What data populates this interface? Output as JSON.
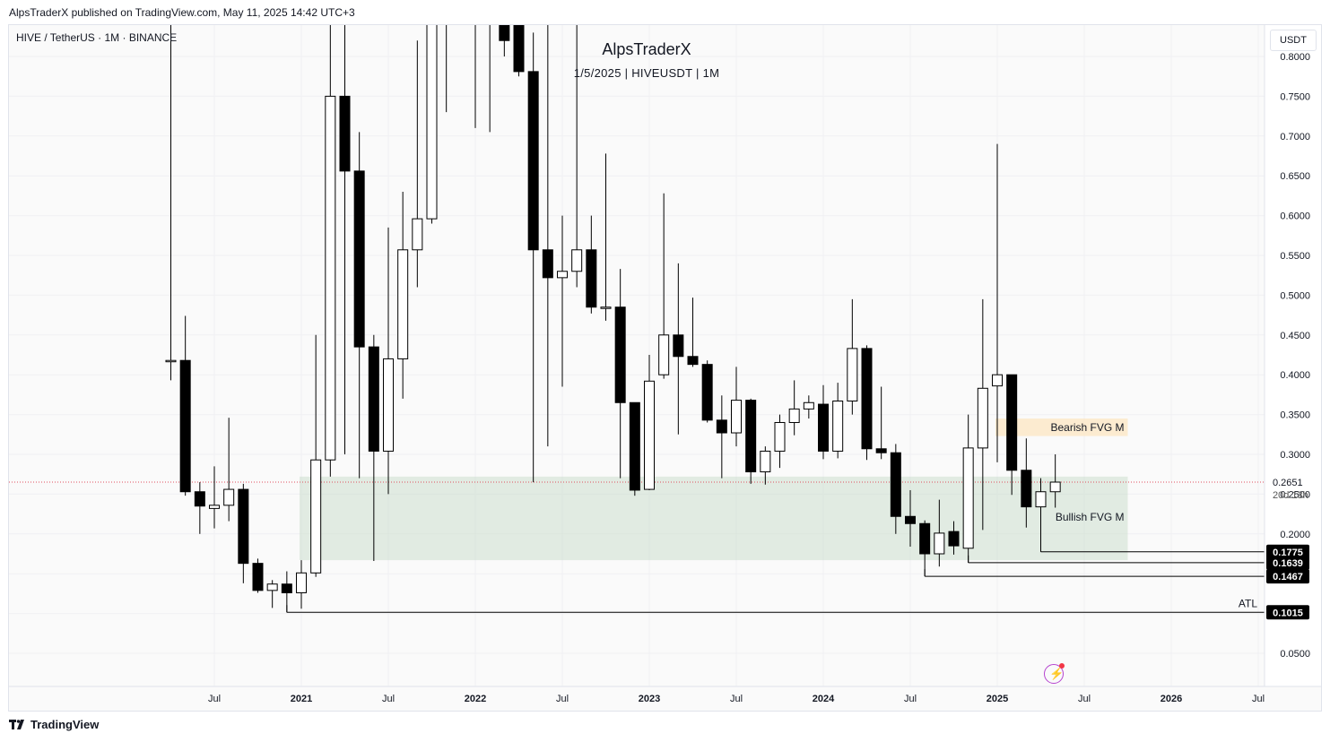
{
  "header": {
    "caption": "AlpsTraderX published on TradingView.com, May 11, 2025 14:42 UTC+3"
  },
  "chart_header": {
    "symbol": "HIVE / TetherUS · 1M · BINANCE",
    "title": "AlpsTraderX",
    "subtitle": "1/5/2025 | HIVEUSDT | 1M",
    "currency": "USDT"
  },
  "footer": {
    "brand": "TradingView"
  },
  "colors": {
    "up_body": "#ffffff",
    "down_body": "#000000",
    "wick": "#000000",
    "bullish_zone": "#c8dbc9",
    "bearish_zone": "#fbe7c8",
    "price_line": "#e04f5f",
    "label_bg": "#000000"
  },
  "icons": [
    "tradingview-logo-icon",
    "lightning-icon"
  ],
  "chart_data": {
    "type": "candlestick",
    "timeframe": "1M",
    "x_ticks": [
      "Jul",
      "2021",
      "Jul",
      "2022",
      "Jul",
      "2023",
      "Jul",
      "2024",
      "Jul",
      "2025",
      "Jul",
      "2026",
      "Jul"
    ],
    "y_ticks": [
      "0.8000",
      "0.7500",
      "0.7000",
      "0.6500",
      "0.6000",
      "0.5500",
      "0.5000",
      "0.4500",
      "0.4000",
      "0.3500",
      "0.3000",
      "0.2500",
      "0.2000",
      "0.0500"
    ],
    "y_range": [
      0.0,
      0.82
    ],
    "candles": [
      {
        "date": "2020-04",
        "open": 0.418,
        "high": 0.99,
        "low": 0.393,
        "close": 0.418
      },
      {
        "date": "2020-05",
        "open": 0.418,
        "high": 0.474,
        "low": 0.248,
        "close": 0.253
      },
      {
        "date": "2020-06",
        "open": 0.253,
        "high": 0.265,
        "low": 0.2,
        "close": 0.235
      },
      {
        "date": "2020-07",
        "open": 0.232,
        "high": 0.285,
        "low": 0.207,
        "close": 0.236
      },
      {
        "date": "2020-08",
        "open": 0.236,
        "high": 0.346,
        "low": 0.216,
        "close": 0.256
      },
      {
        "date": "2020-09",
        "open": 0.256,
        "high": 0.263,
        "low": 0.138,
        "close": 0.163
      },
      {
        "date": "2020-10",
        "open": 0.163,
        "high": 0.169,
        "low": 0.126,
        "close": 0.129
      },
      {
        "date": "2020-11",
        "open": 0.129,
        "high": 0.142,
        "low": 0.107,
        "close": 0.137
      },
      {
        "date": "2020-12",
        "open": 0.137,
        "high": 0.153,
        "low": 0.1015,
        "close": 0.126
      },
      {
        "date": "2021-01",
        "open": 0.126,
        "high": 0.167,
        "low": 0.106,
        "close": 0.151
      },
      {
        "date": "2021-02",
        "open": 0.151,
        "high": 0.45,
        "low": 0.146,
        "close": 0.293
      },
      {
        "date": "2021-03",
        "open": 0.293,
        "high": 0.99,
        "low": 0.272,
        "close": 0.75
      },
      {
        "date": "2021-04",
        "open": 0.75,
        "high": 0.99,
        "low": 0.3,
        "close": 0.656
      },
      {
        "date": "2021-05",
        "open": 0.656,
        "high": 0.705,
        "low": 0.27,
        "close": 0.435
      },
      {
        "date": "2021-06",
        "open": 0.435,
        "high": 0.45,
        "low": 0.166,
        "close": 0.304
      },
      {
        "date": "2021-07",
        "open": 0.304,
        "high": 0.585,
        "low": 0.25,
        "close": 0.42
      },
      {
        "date": "2021-08",
        "open": 0.42,
        "high": 0.63,
        "low": 0.37,
        "close": 0.557
      },
      {
        "date": "2021-09",
        "open": 0.557,
        "high": 0.82,
        "low": 0.51,
        "close": 0.596
      },
      {
        "date": "2021-10",
        "open": 0.596,
        "high": 0.99,
        "low": 0.59,
        "close": 0.94
      },
      {
        "date": "2021-11",
        "open": 0.94,
        "high": 0.99,
        "low": 0.73,
        "close": 0.99
      },
      {
        "date": "2022-01",
        "open": 0.99,
        "high": 0.99,
        "low": 0.71,
        "close": 0.9
      },
      {
        "date": "2022-02",
        "open": 0.9,
        "high": 0.99,
        "low": 0.705,
        "close": 0.86
      },
      {
        "date": "2022-03",
        "open": 0.86,
        "high": 0.99,
        "low": 0.8,
        "close": 0.82
      },
      {
        "date": "2022-04",
        "open": 0.99,
        "high": 0.99,
        "low": 0.775,
        "close": 0.781
      },
      {
        "date": "2022-05",
        "open": 0.781,
        "high": 0.83,
        "low": 0.265,
        "close": 0.557
      },
      {
        "date": "2022-06",
        "open": 0.557,
        "high": 0.99,
        "low": 0.31,
        "close": 0.522
      },
      {
        "date": "2022-07",
        "open": 0.522,
        "high": 0.6,
        "low": 0.385,
        "close": 0.53
      },
      {
        "date": "2022-08",
        "open": 0.53,
        "high": 0.99,
        "low": 0.51,
        "close": 0.557
      },
      {
        "date": "2022-09",
        "open": 0.557,
        "high": 0.6,
        "low": 0.477,
        "close": 0.485
      },
      {
        "date": "2022-10",
        "open": 0.485,
        "high": 0.678,
        "low": 0.468,
        "close": 0.485
      },
      {
        "date": "2022-11",
        "open": 0.485,
        "high": 0.533,
        "low": 0.27,
        "close": 0.365
      },
      {
        "date": "2022-12",
        "open": 0.365,
        "high": 0.365,
        "low": 0.248,
        "close": 0.255
      },
      {
        "date": "2023-01",
        "open": 0.256,
        "high": 0.425,
        "low": 0.255,
        "close": 0.392
      },
      {
        "date": "2023-02",
        "open": 0.4,
        "high": 0.628,
        "low": 0.395,
        "close": 0.45
      },
      {
        "date": "2023-03",
        "open": 0.45,
        "high": 0.54,
        "low": 0.325,
        "close": 0.423
      },
      {
        "date": "2023-04",
        "open": 0.423,
        "high": 0.497,
        "low": 0.41,
        "close": 0.413
      },
      {
        "date": "2023-05",
        "open": 0.413,
        "high": 0.418,
        "low": 0.34,
        "close": 0.343
      },
      {
        "date": "2023-06",
        "open": 0.343,
        "high": 0.374,
        "low": 0.27,
        "close": 0.327
      },
      {
        "date": "2023-07",
        "open": 0.327,
        "high": 0.41,
        "low": 0.31,
        "close": 0.368
      },
      {
        "date": "2023-08",
        "open": 0.368,
        "high": 0.37,
        "low": 0.263,
        "close": 0.278
      },
      {
        "date": "2023-09",
        "open": 0.278,
        "high": 0.31,
        "low": 0.262,
        "close": 0.304
      },
      {
        "date": "2023-10",
        "open": 0.304,
        "high": 0.35,
        "low": 0.283,
        "close": 0.34
      },
      {
        "date": "2023-11",
        "open": 0.34,
        "high": 0.393,
        "low": 0.324,
        "close": 0.357
      },
      {
        "date": "2023-12",
        "open": 0.357,
        "high": 0.374,
        "low": 0.345,
        "close": 0.365
      },
      {
        "date": "2024-01",
        "open": 0.363,
        "high": 0.387,
        "low": 0.294,
        "close": 0.304
      },
      {
        "date": "2024-02",
        "open": 0.304,
        "high": 0.39,
        "low": 0.295,
        "close": 0.367
      },
      {
        "date": "2024-03",
        "open": 0.367,
        "high": 0.495,
        "low": 0.35,
        "close": 0.433
      },
      {
        "date": "2024-04",
        "open": 0.433,
        "high": 0.437,
        "low": 0.293,
        "close": 0.307
      },
      {
        "date": "2024-05",
        "open": 0.307,
        "high": 0.385,
        "low": 0.294,
        "close": 0.302
      },
      {
        "date": "2024-06",
        "open": 0.302,
        "high": 0.313,
        "low": 0.2,
        "close": 0.222
      },
      {
        "date": "2024-07",
        "open": 0.222,
        "high": 0.255,
        "low": 0.184,
        "close": 0.213
      },
      {
        "date": "2024-08",
        "open": 0.213,
        "high": 0.217,
        "low": 0.1467,
        "close": 0.175
      },
      {
        "date": "2024-09",
        "open": 0.175,
        "high": 0.243,
        "low": 0.159,
        "close": 0.201
      },
      {
        "date": "2024-10",
        "open": 0.203,
        "high": 0.216,
        "low": 0.174,
        "close": 0.185
      },
      {
        "date": "2024-11",
        "open": 0.182,
        "high": 0.35,
        "low": 0.1639,
        "close": 0.308
      },
      {
        "date": "2024-12",
        "open": 0.308,
        "high": 0.495,
        "low": 0.205,
        "close": 0.383
      },
      {
        "date": "2025-01",
        "open": 0.386,
        "high": 0.69,
        "low": 0.29,
        "close": 0.4
      },
      {
        "date": "2025-02",
        "open": 0.4,
        "high": 0.4,
        "low": 0.249,
        "close": 0.28
      },
      {
        "date": "2025-03",
        "open": 0.28,
        "high": 0.32,
        "low": 0.208,
        "close": 0.234
      },
      {
        "date": "2025-04",
        "open": 0.234,
        "high": 0.27,
        "low": 0.1775,
        "close": 0.253
      },
      {
        "date": "2025-05",
        "open": 0.253,
        "high": 0.3,
        "low": 0.233,
        "close": 0.2651
      }
    ],
    "zones": [
      {
        "label": "Bearish FVG M",
        "low": 0.323,
        "high": 0.345,
        "start": "2025-01",
        "end": "2025-10"
      },
      {
        "label": "Bullish FVG M",
        "low": 0.167,
        "high": 0.272,
        "start": "2021-01",
        "end": "2025-10"
      }
    ],
    "levels": [
      {
        "label": "0.1775",
        "value": 0.1775,
        "start": "2025-04"
      },
      {
        "label": "0.1639",
        "value": 0.1639,
        "start": "2024-11"
      },
      {
        "label": "0.1467",
        "value": 0.1467,
        "start": "2024-08"
      },
      {
        "label": "0.1015",
        "value": 0.1015,
        "start": "2020-12",
        "annotation": "ATL"
      }
    ],
    "current_price": {
      "value": "0.2651",
      "countdown": "20d 13h"
    }
  }
}
